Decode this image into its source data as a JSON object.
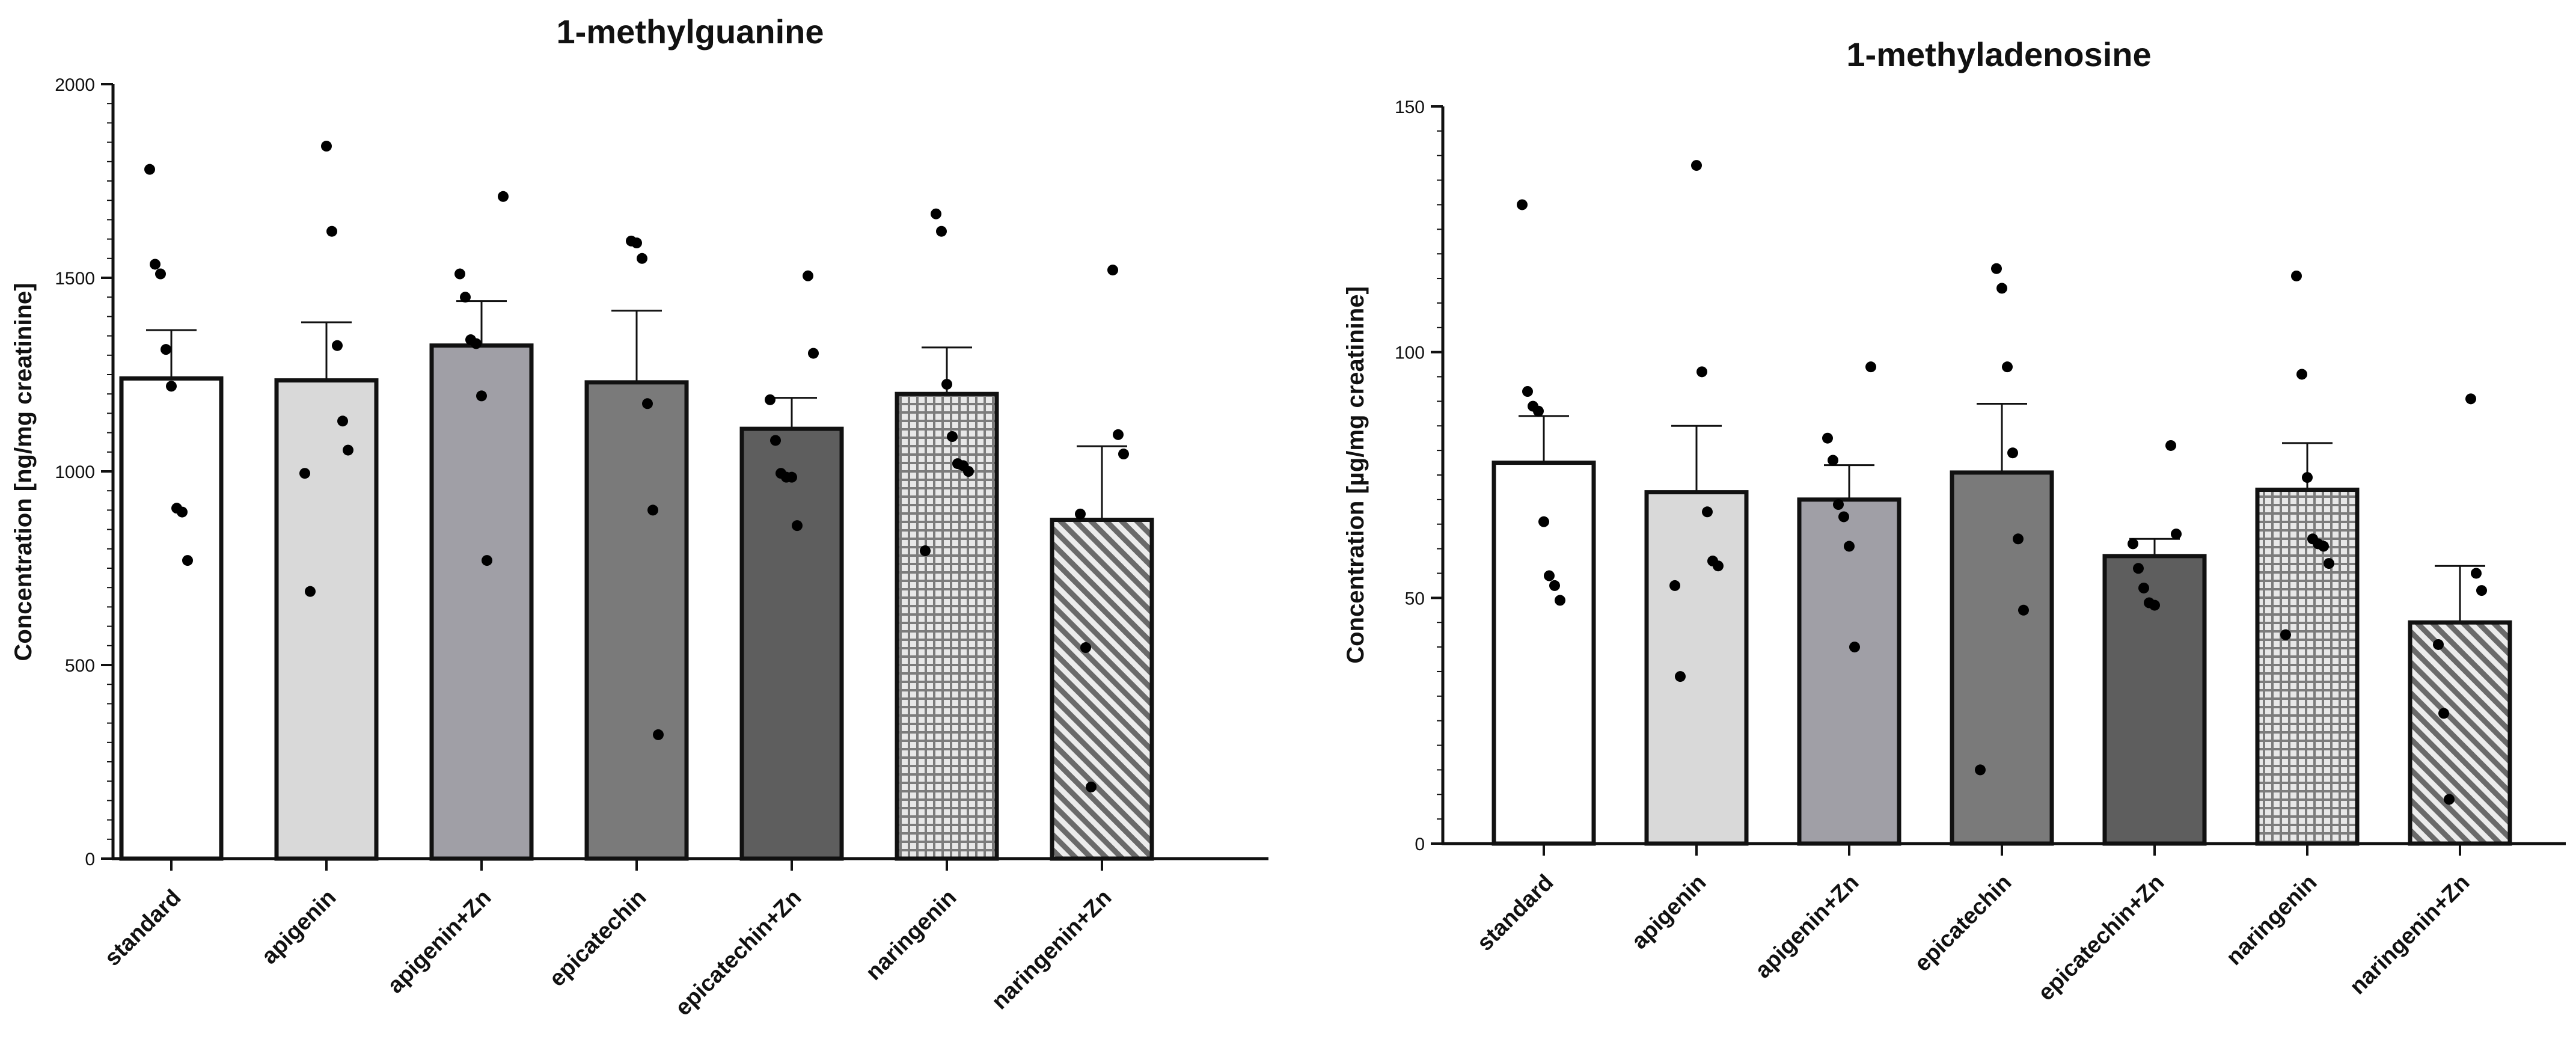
{
  "chart_data": [
    {
      "type": "bar",
      "title": "1-methylguanine",
      "xlabel": "",
      "ylabel": "Concentration [ng/mg creatinine]",
      "ylim": [
        0,
        2000
      ],
      "yticks": [
        0,
        500,
        1000,
        1500,
        2000
      ],
      "categories": [
        "standard",
        "apigenin",
        "apigenin+Zn",
        "epicatechin",
        "epicatechin+Zn",
        "naringenin",
        "naringenin+Zn"
      ],
      "values": [
        1240,
        1235,
        1325,
        1230,
        1110,
        1200,
        875
      ],
      "error_upper": [
        1365,
        1385,
        1440,
        1415,
        1190,
        1320,
        1065
      ],
      "points": [
        [
          1780,
          1535,
          1510,
          1315,
          1220,
          905,
          895,
          770
        ],
        [
          1840,
          1620,
          1325,
          1130,
          1055,
          995,
          690
        ],
        [
          1710,
          1510,
          1450,
          1340,
          1330,
          1195,
          770
        ],
        [
          1595,
          1590,
          1550,
          1175,
          900,
          320
        ],
        [
          1505,
          1305,
          1185,
          1080,
          995,
          985,
          985,
          860
        ],
        [
          1665,
          1620,
          1225,
          1090,
          1020,
          1015,
          1000,
          795
        ],
        [
          1520,
          1095,
          1045,
          890,
          545,
          185
        ]
      ],
      "fills": [
        "white",
        "#d9d9d9",
        "#a09fa6",
        "#7a7a7a",
        "#5e5e5e",
        "checker",
        "stripe"
      ]
    },
    {
      "type": "bar",
      "title": "1-methyladenosine",
      "xlabel": "",
      "ylabel": "Concentration [µg/mg creatinine]",
      "ylim": [
        0,
        150
      ],
      "yticks": [
        0,
        50,
        100,
        150
      ],
      "categories": [
        "standard",
        "apigenin",
        "apigenin+Zn",
        "epicatechin",
        "epicatechin+Zn",
        "naringenin",
        "naringenin+Zn"
      ],
      "values": [
        77.5,
        71.5,
        70,
        75.5,
        58.5,
        72,
        45
      ],
      "error_upper": [
        87,
        85,
        77,
        89.5,
        62,
        81.5,
        56.5
      ],
      "points": [
        [
          130,
          92,
          89,
          88,
          65.5,
          54.5,
          52.5,
          49.5
        ],
        [
          138,
          96,
          67.5,
          57.5,
          56.5,
          52.5,
          34
        ],
        [
          97,
          82.5,
          78,
          69,
          66.5,
          60.5,
          40
        ],
        [
          117,
          113,
          97,
          79.5,
          62,
          47.5,
          15
        ],
        [
          81,
          63,
          61,
          56,
          52,
          49,
          48.5
        ],
        [
          115.5,
          95.5,
          74.5,
          62,
          61,
          60.5,
          57,
          42.5
        ],
        [
          90.5,
          55,
          51.5,
          40.5,
          26.5,
          9
        ]
      ],
      "fills": [
        "white",
        "#d9d9d9",
        "#a09fa6",
        "#7a7a7a",
        "#5e5e5e",
        "checker",
        "stripe"
      ]
    }
  ]
}
